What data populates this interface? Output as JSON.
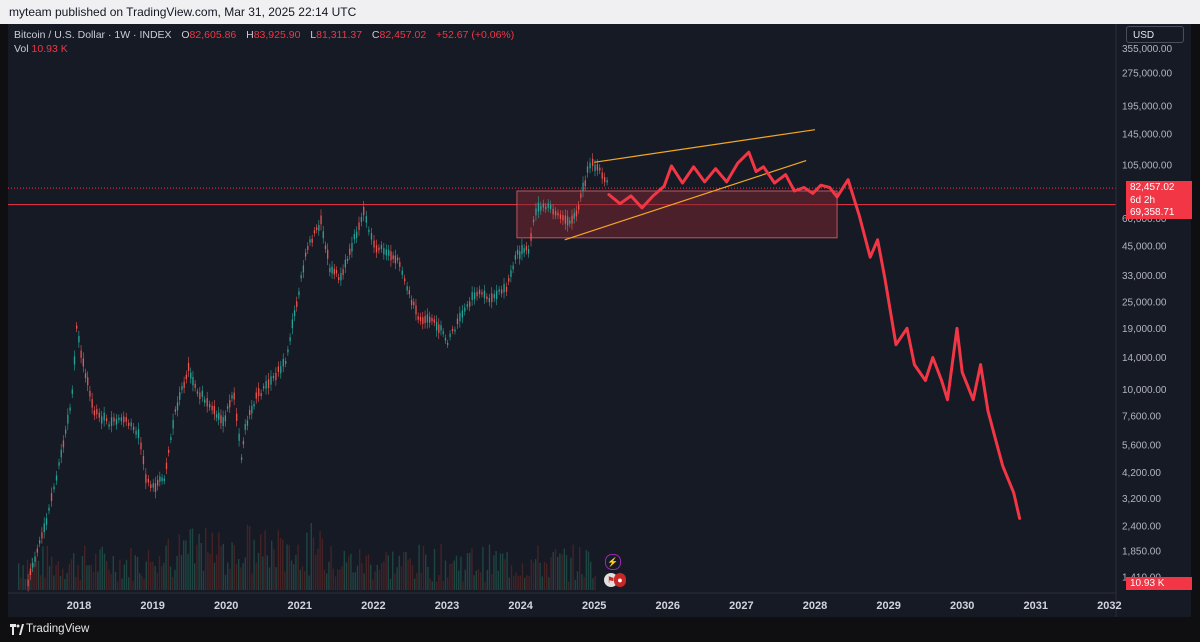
{
  "header": {
    "published_text": "myteam published on TradingView.com, Mar 31, 2025 22:14 UTC"
  },
  "legend": {
    "symbol": "Bitcoin / U.S. Dollar · 1W · INDEX",
    "o_label": "O",
    "o_value": "82,605.86",
    "h_label": "H",
    "h_value": "83,925.90",
    "l_label": "L",
    "l_value": "81,311.37",
    "c_label": "C",
    "c_value": "82,457.02",
    "change": "+52.67 (+0.06%)",
    "vol_label": "Vol",
    "vol_value": "10.93 K"
  },
  "currency_button": "USD",
  "price_tags": {
    "last_price": "82,457.02",
    "countdown": "6d 2h",
    "line_price": "69,358.71",
    "volume": "10.93 K"
  },
  "footer": {
    "brand": "TradingView"
  },
  "colors": {
    "background": "#161a25",
    "up": "#26a69a",
    "down": "#ef5350",
    "projection": "#f23645",
    "channel": "#f5a623",
    "zone_fill": "#7a2630",
    "price_line": "#f23645"
  },
  "chart_data": {
    "type": "line",
    "title": "Bitcoin / U.S. Dollar · 1W · INDEX",
    "y_scale": "log",
    "y_ticks": [
      355000,
      275000,
      195000,
      145000,
      105000,
      60000,
      45000,
      33000,
      25000,
      19000,
      14000,
      10000,
      7600,
      5600,
      4200,
      3200,
      2400,
      1850,
      1410
    ],
    "y_tick_labels": [
      "355,000.00",
      "275,000.00",
      "195,000.00",
      "145,000.00",
      "105,000.00",
      "60,000.00",
      "45,000.00",
      "33,000.00",
      "25,000.00",
      "19,000.00",
      "14,000.00",
      "10,000.00",
      "7,600.00",
      "5,600.00",
      "4,200.00",
      "3,200.00",
      "2,400.00",
      "1,850.00",
      "1,410.00"
    ],
    "x_ticks": [
      "2018",
      "2019",
      "2020",
      "2021",
      "2022",
      "2023",
      "2024",
      "2025",
      "2026",
      "2027",
      "2028",
      "2029",
      "2030",
      "2031",
      "2032"
    ],
    "x_range": [
      2017.23,
      2032.5
    ],
    "y_range": [
      1300,
      400000
    ],
    "series": [
      {
        "x": [
          2017.3,
          2017.55,
          2017.72,
          2017.9,
          2017.96,
          2018.05,
          2018.2,
          2018.4,
          2018.6,
          2018.8,
          2018.9,
          2019.0,
          2019.15,
          2019.3,
          2019.48,
          2019.6,
          2019.8,
          2019.95,
          2020.1,
          2020.2,
          2020.25,
          2020.4,
          2020.6,
          2020.8,
          2020.95,
          2021.1,
          2021.28,
          2021.4,
          2021.55,
          2021.7,
          2021.86,
          2022.0,
          2022.2,
          2022.35,
          2022.45,
          2022.6,
          2022.85,
          2023.0,
          2023.2,
          2023.4,
          2023.6,
          2023.8,
          2023.95,
          2024.1,
          2024.2,
          2024.4,
          2024.6,
          2024.75,
          2024.9,
          2024.97,
          2025.1,
          2025.2
        ],
        "y": [
          1350,
          2500,
          4500,
          9500,
          19000,
          13000,
          8000,
          7000,
          7400,
          6300,
          4000,
          3600,
          4000,
          8000,
          12500,
          10000,
          8000,
          7200,
          9500,
          5000,
          6800,
          9200,
          11000,
          13500,
          25000,
          45000,
          58000,
          36000,
          32000,
          45000,
          65000,
          45000,
          42000,
          38000,
          29000,
          21000,
          20000,
          16500,
          22000,
          28000,
          26000,
          29000,
          42000,
          43000,
          66000,
          68000,
          58000,
          62000,
          98000,
          105000,
          96000,
          84000
        ],
        "up": [
          true,
          true,
          true,
          true,
          true,
          false,
          false,
          false,
          true,
          false,
          false,
          false,
          true,
          true,
          true,
          false,
          false,
          false,
          true,
          false,
          true,
          true,
          true,
          true,
          true,
          true,
          true,
          false,
          false,
          true,
          true,
          false,
          false,
          false,
          false,
          false,
          false,
          false,
          true,
          true,
          false,
          true,
          true,
          true,
          true,
          true,
          false,
          true,
          true,
          true,
          false,
          false
        ]
      },
      {
        "name": "",
        "x": [
          2025.2,
          2025.35,
          2025.5,
          2025.65,
          2025.8,
          2025.95,
          2026.05,
          2026.2,
          2026.35,
          2026.5,
          2026.65,
          2026.8,
          2026.95,
          2027.1,
          2027.2,
          2027.3,
          2027.45,
          2027.6,
          2027.72,
          2027.85,
          2027.97,
          2028.08,
          2028.2,
          2028.3,
          2028.45,
          2028.6,
          2028.75,
          2028.85,
          2028.95,
          2029.1,
          2029.25,
          2029.35,
          2029.5,
          2029.6,
          2029.72,
          2029.8,
          2029.93,
          2030.0,
          2030.15,
          2030.25,
          2030.35,
          2030.45,
          2030.55,
          2030.7,
          2030.78
        ],
        "y": [
          77000,
          70000,
          76000,
          67000,
          76000,
          84000,
          104000,
          87000,
          103000,
          88000,
          101000,
          88000,
          107000,
          120000,
          98000,
          103000,
          87000,
          95000,
          80000,
          83000,
          78000,
          85000,
          83000,
          75000,
          90000,
          62000,
          40000,
          48000,
          32000,
          16000,
          19000,
          13000,
          11000,
          14000,
          11000,
          9000,
          19000,
          12000,
          9000,
          13000,
          8000,
          6000,
          4500,
          3400,
          2600
        ]
      }
    ],
    "channel_upper": [
      [
        2025.0,
        108000
      ],
      [
        2028.0,
        152000
      ]
    ],
    "channel_lower": [
      [
        2024.6,
        48000
      ],
      [
        2027.88,
        110000
      ]
    ],
    "zone": {
      "x": [
        2023.95,
        2028.3
      ],
      "y": [
        49000,
        80000
      ]
    },
    "horizontal_lines": [
      69358.71,
      82457.02
    ],
    "volume_max": "10.93 K"
  }
}
